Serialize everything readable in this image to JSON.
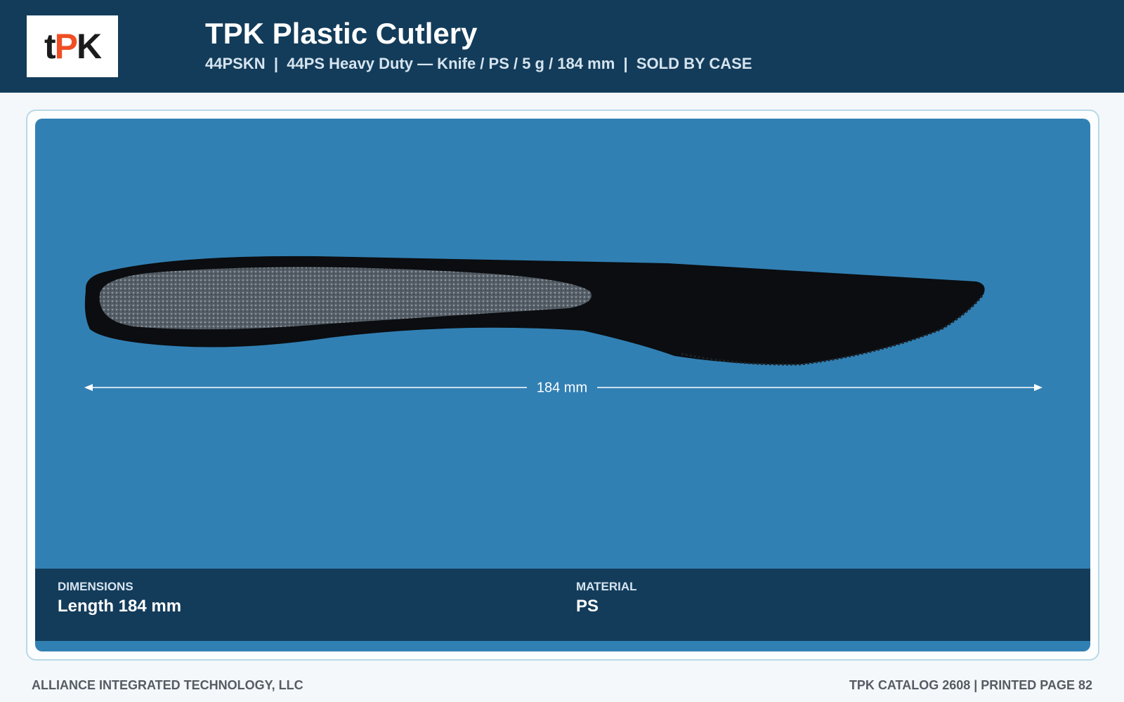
{
  "header": {
    "logo": {
      "prefix": "t",
      "main": "PK"
    },
    "title": "TPK Plastic Cutlery",
    "subtitle": "44PSKN  |  44PS Heavy Duty — Knife / PS / 5 g / 184 mm  |  SOLD BY CASE"
  },
  "image": {
    "dimension_label": "184 mm"
  },
  "specs": [
    {
      "label": "DIMENSIONS",
      "value": "Length 184 mm"
    },
    {
      "label": "MATERIAL",
      "value": "PS"
    }
  ],
  "footer": {
    "left": "ALLIANCE INTEGRATED TECHNOLOGY, LLC",
    "right": "TPK CATALOG 2608 | PRINTED PAGE 82"
  }
}
